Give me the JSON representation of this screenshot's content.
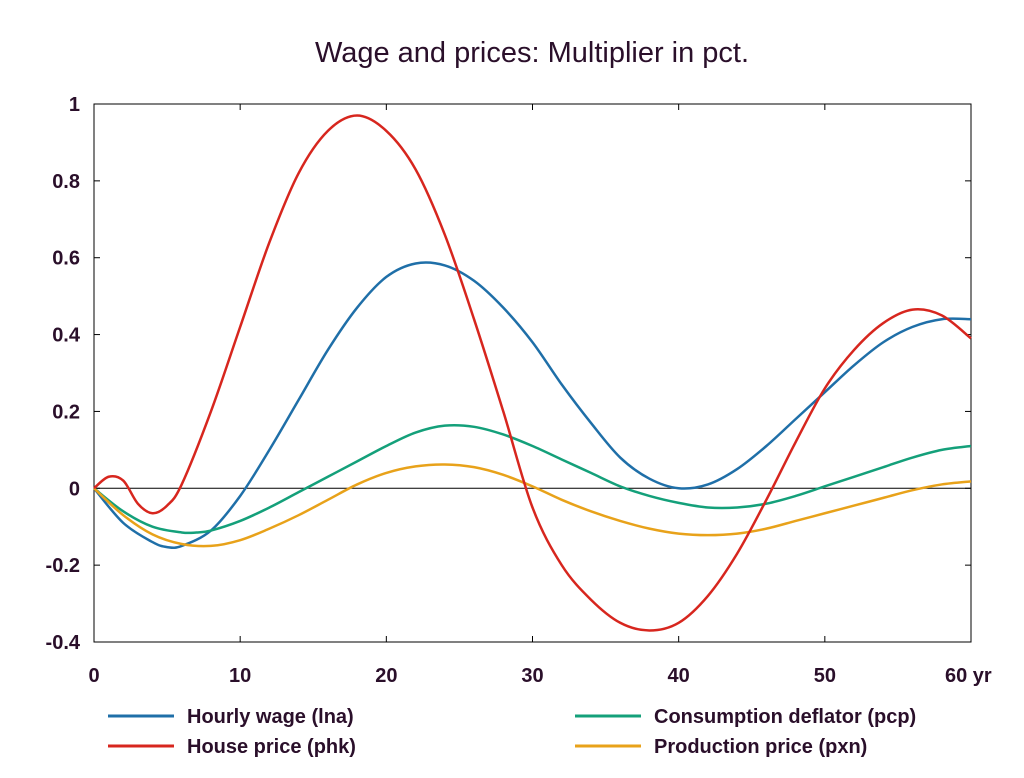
{
  "chart_data": {
    "type": "line",
    "title": "Wage and prices: Multiplier in pct.",
    "x_unit": "yr",
    "xlim": [
      0,
      60
    ],
    "ylim": [
      -0.4,
      1
    ],
    "x_ticks": [
      0,
      10,
      20,
      30,
      40,
      50,
      60
    ],
    "x_tick_labels": [
      "0",
      "10",
      "20",
      "30",
      "40",
      "50",
      "60 yr"
    ],
    "y_ticks": [
      -0.4,
      -0.2,
      0,
      0.2,
      0.4,
      0.6,
      0.8,
      1
    ],
    "y_tick_labels": [
      "-0.4",
      "-0.2",
      "0",
      "0.2",
      "0.4",
      "0.6",
      "0.8",
      "1"
    ],
    "zero_line": true,
    "grid": false,
    "legend_position": "bottom",
    "series": [
      {
        "name": "Hourly wage (lna)",
        "color": "#1f6fa8",
        "x": [
          0,
          2,
          4,
          5,
          6,
          8,
          10,
          12,
          14,
          16,
          18,
          20,
          22,
          24,
          26,
          28,
          30,
          32,
          34,
          36,
          38,
          40,
          42,
          44,
          46,
          48,
          50,
          52,
          54,
          56,
          58,
          60
        ],
        "y": [
          0,
          -0.09,
          -0.14,
          -0.153,
          -0.15,
          -0.11,
          -0.02,
          0.1,
          0.23,
          0.36,
          0.47,
          0.55,
          0.585,
          0.58,
          0.54,
          0.47,
          0.38,
          0.27,
          0.17,
          0.08,
          0.025,
          0.0,
          0.01,
          0.05,
          0.11,
          0.18,
          0.25,
          0.32,
          0.38,
          0.42,
          0.44,
          0.44
        ]
      },
      {
        "name": "House price (phk)",
        "color": "#d7261e",
        "x": [
          0,
          1,
          2,
          3,
          4,
          5,
          6,
          8,
          10,
          12,
          14,
          16,
          18,
          20,
          22,
          24,
          26,
          28,
          30,
          32,
          34,
          36,
          38,
          40,
          42,
          44,
          46,
          48,
          50,
          52,
          54,
          56,
          58,
          60
        ],
        "y": [
          0,
          0.03,
          0.02,
          -0.04,
          -0.065,
          -0.045,
          0.01,
          0.2,
          0.42,
          0.64,
          0.82,
          0.93,
          0.97,
          0.93,
          0.83,
          0.66,
          0.44,
          0.2,
          -0.05,
          -0.2,
          -0.29,
          -0.35,
          -0.37,
          -0.35,
          -0.28,
          -0.17,
          -0.03,
          0.12,
          0.26,
          0.36,
          0.43,
          0.465,
          0.45,
          0.39
        ]
      },
      {
        "name": "Consumption deflator (pcp)",
        "color": "#14a07a",
        "x": [
          0,
          2,
          4,
          6,
          7,
          8,
          10,
          12,
          14,
          16,
          18,
          20,
          22,
          24,
          26,
          28,
          30,
          32,
          34,
          36,
          38,
          40,
          42,
          44,
          46,
          48,
          50,
          52,
          54,
          56,
          58,
          60
        ],
        "y": [
          0,
          -0.06,
          -0.1,
          -0.115,
          -0.115,
          -0.11,
          -0.085,
          -0.05,
          -0.01,
          0.03,
          0.07,
          0.11,
          0.145,
          0.163,
          0.16,
          0.14,
          0.11,
          0.075,
          0.04,
          0.005,
          -0.02,
          -0.038,
          -0.05,
          -0.05,
          -0.04,
          -0.02,
          0.005,
          0.03,
          0.055,
          0.08,
          0.1,
          0.11
        ]
      },
      {
        "name": "Production price (pxn)",
        "color": "#e8a21a",
        "x": [
          0,
          2,
          4,
          6,
          8,
          10,
          12,
          14,
          16,
          18,
          20,
          22,
          24,
          26,
          28,
          30,
          32,
          34,
          36,
          38,
          40,
          42,
          44,
          46,
          48,
          50,
          52,
          54,
          56,
          58,
          60
        ],
        "y": [
          0,
          -0.07,
          -0.12,
          -0.145,
          -0.15,
          -0.135,
          -0.105,
          -0.07,
          -0.03,
          0.01,
          0.04,
          0.057,
          0.062,
          0.055,
          0.035,
          0.005,
          -0.03,
          -0.06,
          -0.085,
          -0.105,
          -0.118,
          -0.122,
          -0.118,
          -0.105,
          -0.085,
          -0.065,
          -0.045,
          -0.025,
          -0.005,
          0.01,
          0.018
        ]
      }
    ]
  }
}
